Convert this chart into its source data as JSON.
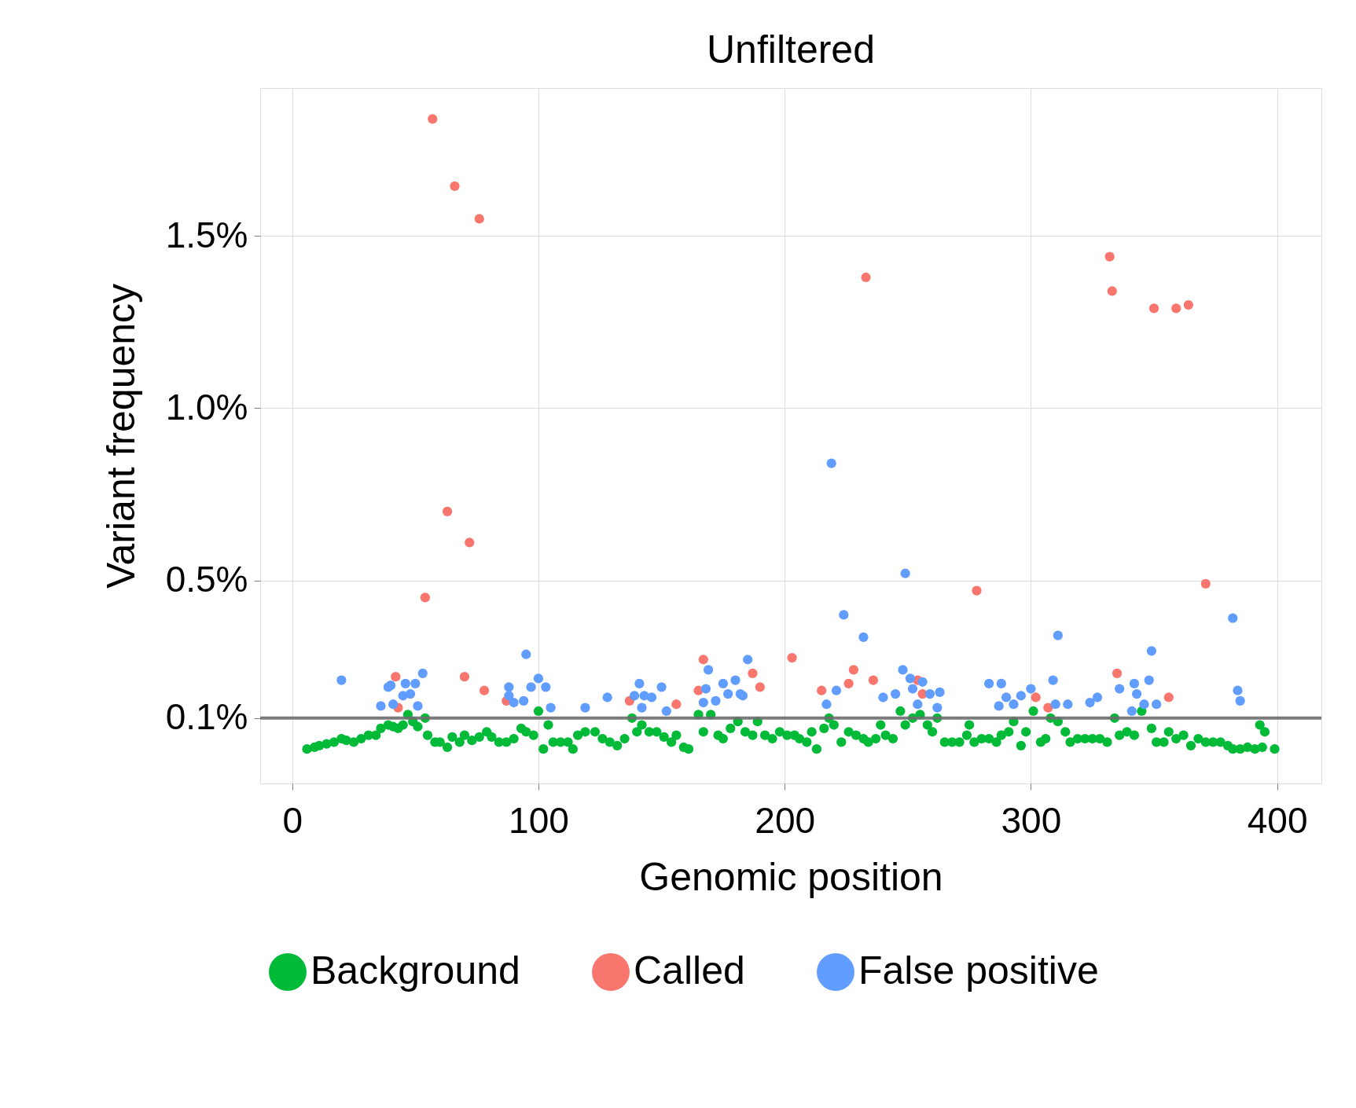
{
  "chart_data": {
    "type": "scatter",
    "title": "Unfiltered",
    "xlabel": "Genomic position",
    "ylabel": "Variant frequency",
    "xlim": [
      -13,
      418
    ],
    "xticks": [
      0,
      100,
      200,
      300,
      400
    ],
    "ylim": [
      -0.09,
      1.93
    ],
    "yticks": [
      {
        "value": 0.1,
        "label": "0.1%"
      },
      {
        "value": 0.5,
        "label": "0.5%"
      },
      {
        "value": 1.0,
        "label": "1.0%"
      },
      {
        "value": 1.5,
        "label": "1.5%"
      }
    ],
    "grid": true,
    "legend": "bottom",
    "marker": "circle",
    "ref_lines": [
      {
        "axis": "y",
        "value": 0.1,
        "color": "#6e6e6e"
      }
    ],
    "series": [
      {
        "name": "Background",
        "color": "#00ba38",
        "x": [
          6,
          9,
          11,
          14,
          17,
          20,
          22,
          25,
          28,
          31,
          34,
          36,
          39,
          41,
          43,
          45,
          47,
          49,
          51,
          54,
          55,
          58,
          60,
          63,
          65,
          68,
          70,
          73,
          76,
          79,
          81,
          84,
          87,
          90,
          93,
          95,
          98,
          100,
          102,
          104,
          106,
          109,
          112,
          114,
          116,
          119,
          123,
          126,
          129,
          132,
          135,
          138,
          140,
          142,
          145,
          148,
          151,
          154,
          156,
          159,
          161,
          165,
          167,
          170,
          173,
          175,
          178,
          181,
          184,
          187,
          189,
          192,
          195,
          198,
          201,
          204,
          206,
          209,
          211,
          213,
          216,
          218,
          220,
          223,
          226,
          229,
          232,
          234,
          237,
          239,
          241,
          244,
          247,
          249,
          252,
          255,
          258,
          260,
          262,
          265,
          268,
          271,
          274,
          275,
          277,
          280,
          283,
          286,
          288,
          291,
          293,
          296,
          298,
          301,
          304,
          306,
          308,
          311,
          314,
          316,
          319,
          322,
          325,
          328,
          331,
          334,
          336,
          339,
          342,
          345,
          349,
          351,
          354,
          356,
          359,
          362,
          365,
          368,
          371,
          374,
          377,
          380,
          382,
          385,
          388,
          391,
          394,
          393,
          395,
          399
        ],
        "values": [
          0.01,
          0.015,
          0.02,
          0.025,
          0.03,
          0.04,
          0.035,
          0.03,
          0.04,
          0.05,
          0.05,
          0.07,
          0.08,
          0.075,
          0.07,
          0.08,
          0.11,
          0.09,
          0.075,
          0.1,
          0.05,
          0.03,
          0.03,
          0.015,
          0.045,
          0.03,
          0.05,
          0.035,
          0.045,
          0.06,
          0.045,
          0.03,
          0.03,
          0.04,
          0.07,
          0.06,
          0.05,
          0.12,
          0.01,
          0.08,
          0.03,
          0.03,
          0.03,
          0.01,
          0.05,
          0.06,
          0.06,
          0.04,
          0.03,
          0.02,
          0.04,
          0.1,
          0.06,
          0.08,
          0.06,
          0.06,
          0.045,
          0.03,
          0.05,
          0.015,
          0.01,
          0.11,
          0.06,
          0.11,
          0.05,
          0.04,
          0.07,
          0.09,
          0.06,
          0.05,
          0.09,
          0.05,
          0.04,
          0.06,
          0.05,
          0.05,
          0.04,
          0.03,
          0.06,
          0.01,
          0.07,
          0.1,
          0.08,
          0.03,
          0.06,
          0.05,
          0.04,
          0.03,
          0.04,
          0.08,
          0.05,
          0.04,
          0.12,
          0.08,
          0.1,
          0.11,
          0.08,
          0.06,
          0.1,
          0.03,
          0.03,
          0.03,
          0.05,
          0.08,
          0.03,
          0.04,
          0.04,
          0.03,
          0.05,
          0.06,
          0.09,
          0.02,
          0.06,
          0.12,
          0.03,
          0.04,
          0.1,
          0.09,
          0.06,
          0.03,
          0.04,
          0.04,
          0.04,
          0.04,
          0.03,
          0.1,
          0.05,
          0.06,
          0.05,
          0.12,
          0.07,
          0.03,
          0.03,
          0.06,
          0.04,
          0.05,
          0.02,
          0.04,
          0.03,
          0.03,
          0.03,
          0.02,
          0.01,
          0.01,
          0.015,
          0.01,
          0.015,
          0.08,
          0.06,
          0.01
        ]
      },
      {
        "name": "Called",
        "color": "#f8766d",
        "x": [
          57,
          66,
          76,
          233,
          332,
          333,
          350,
          359,
          364,
          63,
          72,
          54,
          278,
          371,
          42,
          43,
          70,
          78,
          87,
          137,
          156,
          167,
          165,
          187,
          190,
          203,
          215,
          226,
          228,
          236,
          254,
          256,
          302,
          307,
          335,
          356
        ],
        "values": [
          1.84,
          1.645,
          1.55,
          1.38,
          1.44,
          1.34,
          1.29,
          1.29,
          1.3,
          0.7,
          0.61,
          0.45,
          0.47,
          0.49,
          0.22,
          0.13,
          0.22,
          0.18,
          0.15,
          0.15,
          0.14,
          0.27,
          0.18,
          0.23,
          0.19,
          0.275,
          0.18,
          0.2,
          0.24,
          0.21,
          0.21,
          0.17,
          0.16,
          0.13,
          0.23,
          0.16
        ]
      },
      {
        "name": "False positive",
        "color": "#619cff",
        "x": [
          219,
          249,
          224,
          232,
          311,
          382,
          349,
          95,
          20,
          53,
          50,
          46,
          40,
          39,
          36,
          45,
          48,
          51,
          41,
          88,
          88,
          90,
          94,
          97,
          100,
          103,
          105,
          119,
          128,
          139,
          141,
          143,
          142,
          146,
          150,
          152,
          167,
          169,
          168,
          172,
          175,
          177,
          180,
          182,
          185,
          183,
          217,
          221,
          240,
          245,
          248,
          251,
          252,
          254,
          256,
          259,
          263,
          262,
          283,
          288,
          287,
          290,
          293,
          296,
          300,
          309,
          310,
          315,
          324,
          327,
          336,
          342,
          343,
          341,
          346,
          348,
          351,
          384,
          385
        ],
        "values": [
          0.84,
          0.52,
          0.4,
          0.335,
          0.34,
          0.39,
          0.295,
          0.285,
          0.21,
          0.23,
          0.2,
          0.2,
          0.195,
          0.19,
          0.135,
          0.165,
          0.17,
          0.135,
          0.14,
          0.19,
          0.165,
          0.145,
          0.15,
          0.19,
          0.215,
          0.19,
          0.13,
          0.13,
          0.16,
          0.165,
          0.2,
          0.165,
          0.13,
          0.16,
          0.19,
          0.12,
          0.145,
          0.24,
          0.185,
          0.15,
          0.2,
          0.17,
          0.21,
          0.17,
          0.27,
          0.165,
          0.14,
          0.18,
          0.16,
          0.17,
          0.24,
          0.215,
          0.185,
          0.14,
          0.205,
          0.17,
          0.175,
          0.13,
          0.2,
          0.2,
          0.135,
          0.16,
          0.14,
          0.165,
          0.185,
          0.21,
          0.14,
          0.14,
          0.145,
          0.16,
          0.185,
          0.2,
          0.17,
          0.12,
          0.14,
          0.21,
          0.14,
          0.18,
          0.15
        ]
      }
    ]
  }
}
